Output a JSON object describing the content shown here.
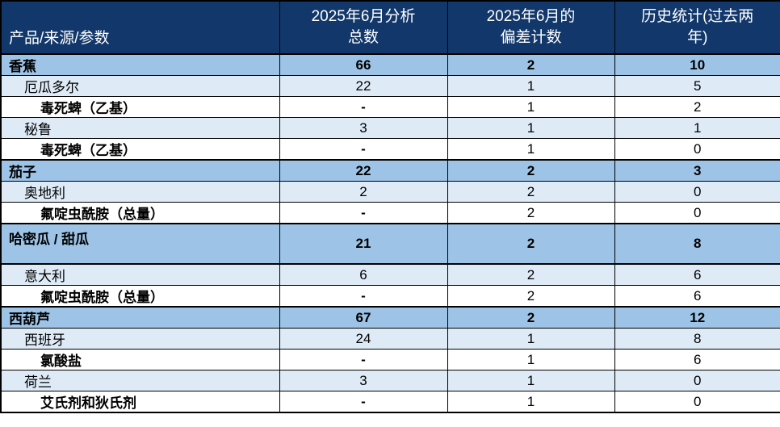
{
  "colors": {
    "header_bg": "#12386B",
    "header_text": "#FFFFFF",
    "product_row_bg": "#9DC3E6",
    "country_row_bg": "#DEEBF7",
    "param_row_bg": "#FFFFFF",
    "border": "#000000"
  },
  "table": {
    "columns": [
      {
        "label": "产品/来源/参数"
      },
      {
        "label": "2025年6月分析\n总数"
      },
      {
        "label": "2025年6月的\n偏差计数"
      },
      {
        "label": "历史统计(过去两\n年)"
      }
    ],
    "rows": [
      {
        "type": "product",
        "label": "香蕉",
        "values": [
          "66",
          "2",
          "10"
        ]
      },
      {
        "type": "country",
        "label": "厄瓜多尔",
        "values": [
          "22",
          "1",
          "5"
        ]
      },
      {
        "type": "param",
        "label": "毒死蜱（乙基）",
        "values": [
          "-",
          "1",
          "2"
        ]
      },
      {
        "type": "country",
        "label": "秘鲁",
        "values": [
          "3",
          "1",
          "1"
        ]
      },
      {
        "type": "param",
        "label": "毒死蜱（乙基）",
        "values": [
          "-",
          "1",
          "0"
        ]
      },
      {
        "type": "product",
        "label": "茄子",
        "values": [
          "22",
          "2",
          "3"
        ]
      },
      {
        "type": "country",
        "label": "奥地利",
        "values": [
          "2",
          "2",
          "0"
        ]
      },
      {
        "type": "param",
        "label": "氟啶虫酰胺（总量）",
        "values": [
          "-",
          "2",
          "0"
        ]
      },
      {
        "type": "product",
        "label": "哈密瓜 / 甜瓜",
        "values": [
          "21",
          "2",
          "8"
        ],
        "tall": true
      },
      {
        "type": "country",
        "label": "意大利",
        "values": [
          "6",
          "2",
          "6"
        ]
      },
      {
        "type": "param",
        "label": "氟啶虫酰胺（总量）",
        "values": [
          "-",
          "2",
          "6"
        ]
      },
      {
        "type": "product",
        "label": "西葫芦",
        "values": [
          "67",
          "2",
          "12"
        ]
      },
      {
        "type": "country",
        "label": "西班牙",
        "values": [
          "24",
          "1",
          "8"
        ]
      },
      {
        "type": "param",
        "label": "氯酸盐",
        "values": [
          "-",
          "1",
          "6"
        ]
      },
      {
        "type": "country",
        "label": "荷兰",
        "values": [
          "3",
          "1",
          "0"
        ]
      },
      {
        "type": "param",
        "label": "艾氏剂和狄氏剂",
        "values": [
          "-",
          "1",
          "0"
        ]
      }
    ]
  }
}
